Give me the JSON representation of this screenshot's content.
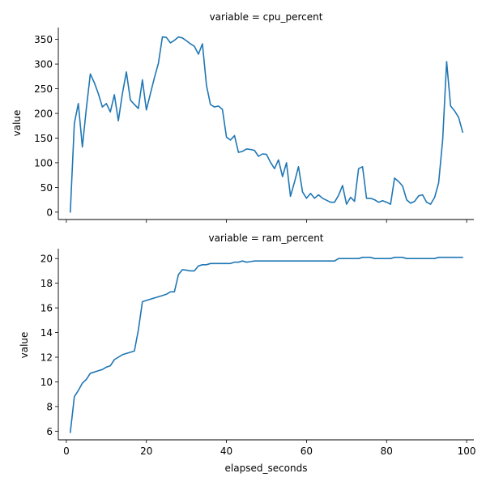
{
  "chart_data": [
    {
      "type": "line",
      "title": "variable = cpu_percent",
      "xlabel": "",
      "ylabel": "value",
      "xlim": [
        -2,
        101.8
      ],
      "ylim": [
        -15,
        374
      ],
      "xticks": [
        0,
        20,
        40,
        60,
        80,
        100
      ],
      "yticks": [
        0,
        50,
        100,
        150,
        200,
        250,
        300,
        350
      ],
      "ytick_labels": [
        "0",
        "50",
        "100",
        "150",
        "200",
        "250",
        "300",
        "350"
      ],
      "grid": false,
      "series": [
        {
          "color": "#1f77b4",
          "x": [
            1,
            2,
            3,
            4,
            5,
            6,
            7,
            8,
            9,
            10,
            11,
            12,
            13,
            14,
            15,
            16,
            17,
            18,
            19,
            20,
            21,
            22,
            23,
            24,
            25,
            26,
            27,
            28,
            29,
            30,
            31,
            32,
            33,
            34,
            35,
            36,
            37,
            38,
            39,
            40,
            41,
            42,
            43,
            44,
            45,
            46,
            47,
            48,
            49,
            50,
            51,
            52,
            53,
            54,
            55,
            56,
            57,
            58,
            59,
            60,
            61,
            62,
            63,
            64,
            65,
            66,
            67,
            68,
            69,
            70,
            71,
            72,
            73,
            74,
            75,
            76,
            77,
            78,
            79,
            80,
            81,
            82,
            83,
            84,
            85,
            86,
            87,
            88,
            89,
            90,
            91,
            92,
            93,
            94,
            95,
            96,
            97,
            98,
            99
          ],
          "y": [
            0,
            180,
            220,
            132,
            210,
            280,
            262,
            240,
            213,
            220,
            203,
            238,
            185,
            240,
            284,
            227,
            218,
            210,
            268,
            207,
            240,
            272,
            302,
            355,
            354,
            343,
            348,
            355,
            353,
            347,
            341,
            336,
            320,
            341,
            257,
            218,
            213,
            215,
            208,
            152,
            146,
            155,
            121,
            123,
            128,
            127,
            125,
            113,
            118,
            117,
            101,
            88,
            106,
            72,
            100,
            32,
            61,
            92,
            41,
            28,
            38,
            28,
            35,
            28,
            24,
            20,
            20,
            34,
            54,
            16,
            30,
            22,
            88,
            92,
            28,
            28,
            25,
            20,
            23,
            20,
            16,
            69,
            62,
            53,
            25,
            18,
            22,
            33,
            35,
            20,
            16,
            30,
            59,
            146,
            305,
            215,
            205,
            192,
            162
          ]
        }
      ]
    },
    {
      "type": "line",
      "title": "variable = ram_percent",
      "xlabel": "elapsed_seconds",
      "ylabel": "value",
      "xlim": [
        -2,
        101.8
      ],
      "ylim": [
        5.3,
        20.8
      ],
      "xticks": [
        0,
        20,
        40,
        60,
        80,
        100
      ],
      "xtick_labels": [
        "0",
        "20",
        "40",
        "60",
        "80",
        "100"
      ],
      "yticks": [
        6,
        8,
        10,
        12,
        14,
        16,
        18,
        20
      ],
      "ytick_labels": [
        "6",
        "8",
        "10",
        "12",
        "14",
        "16",
        "18",
        "20"
      ],
      "grid": false,
      "series": [
        {
          "color": "#1f77b4",
          "x": [
            1,
            2,
            3,
            4,
            5,
            6,
            7,
            8,
            9,
            10,
            11,
            12,
            13,
            14,
            15,
            16,
            17,
            18,
            19,
            20,
            21,
            22,
            23,
            24,
            25,
            26,
            27,
            28,
            29,
            30,
            31,
            32,
            33,
            34,
            35,
            36,
            37,
            38,
            39,
            40,
            41,
            42,
            43,
            44,
            45,
            46,
            47,
            48,
            49,
            50,
            51,
            52,
            53,
            54,
            55,
            56,
            57,
            58,
            59,
            60,
            61,
            62,
            63,
            64,
            65,
            66,
            67,
            68,
            69,
            70,
            71,
            72,
            73,
            74,
            75,
            76,
            77,
            78,
            79,
            80,
            81,
            82,
            83,
            84,
            85,
            86,
            87,
            88,
            89,
            90,
            91,
            92,
            93,
            94,
            95,
            96,
            97,
            98,
            99
          ],
          "y": [
            5.9,
            8.8,
            9.3,
            9.9,
            10.2,
            10.7,
            10.8,
            10.9,
            11.0,
            11.2,
            11.3,
            11.8,
            12.0,
            12.2,
            12.3,
            12.4,
            12.5,
            14.2,
            16.5,
            16.6,
            16.7,
            16.8,
            16.9,
            17.0,
            17.1,
            17.3,
            17.3,
            18.7,
            19.1,
            19.05,
            19.0,
            19.0,
            19.4,
            19.5,
            19.5,
            19.6,
            19.6,
            19.6,
            19.6,
            19.6,
            19.6,
            19.7,
            19.7,
            19.8,
            19.7,
            19.75,
            19.8,
            19.8,
            19.8,
            19.8,
            19.8,
            19.8,
            19.8,
            19.8,
            19.8,
            19.8,
            19.8,
            19.8,
            19.8,
            19.8,
            19.8,
            19.8,
            19.8,
            19.8,
            19.8,
            19.8,
            19.8,
            20.0,
            20.0,
            20.0,
            20.0,
            20.0,
            20.0,
            20.1,
            20.1,
            20.1,
            20.0,
            20.0,
            20.0,
            20.0,
            20.0,
            20.1,
            20.1,
            20.1,
            20.0,
            20.0,
            20.0,
            20.0,
            20.0,
            20.0,
            20.0,
            20.0,
            20.1,
            20.1,
            20.1,
            20.1,
            20.1,
            20.1,
            20.1
          ]
        }
      ]
    }
  ]
}
